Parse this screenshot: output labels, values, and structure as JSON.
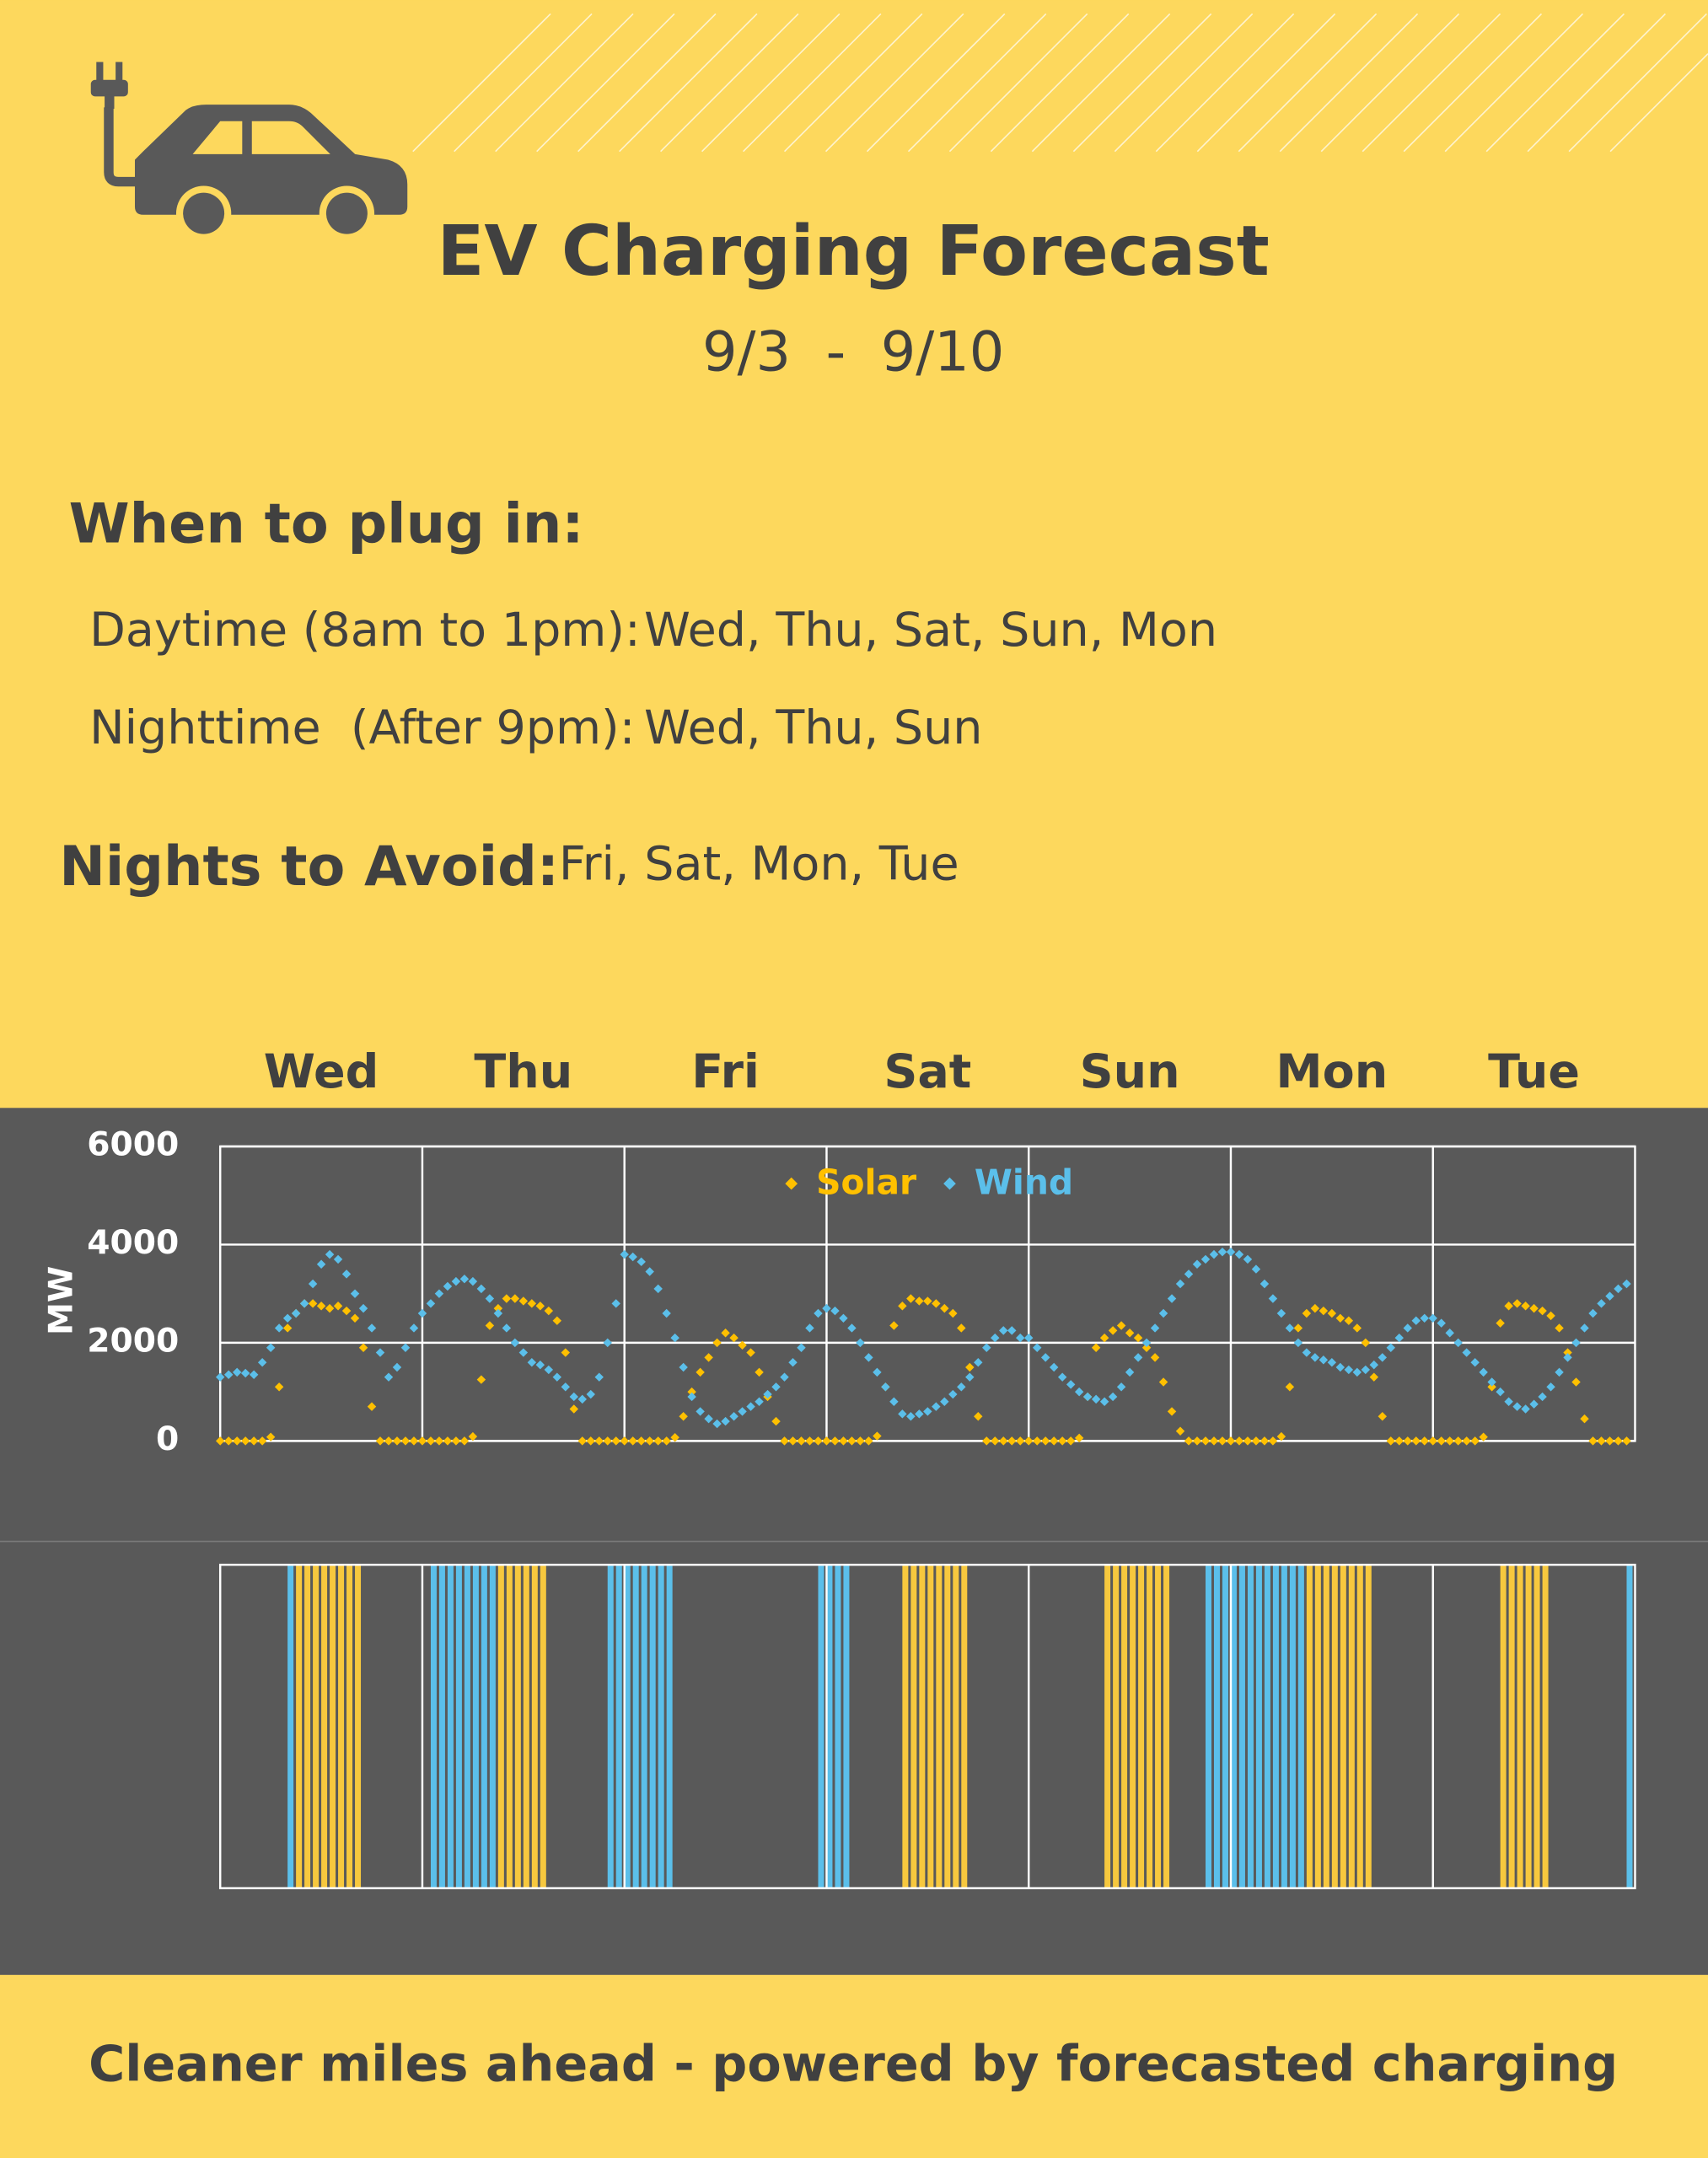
{
  "header": {
    "title": "EV Charging Forecast",
    "date_range": "9/3  -  9/10"
  },
  "plug_in": {
    "heading": "When to plug in:",
    "rows": [
      {
        "label": "Daytime (8am to 1pm):",
        "days": "Wed, Thu, Sat, Sun, Mon"
      },
      {
        "label": "Nighttime  (After 9pm):",
        "days": "Wed, Thu, Sun"
      }
    ]
  },
  "avoid": {
    "heading": "Nights to Avoid:",
    "days": "Fri, Sat, Mon, Tue"
  },
  "chart_data": [
    {
      "type": "scatter",
      "categories": [
        "Wed",
        "Thu",
        "Fri",
        "Sat",
        "Sun",
        "Mon",
        "Tue"
      ],
      "y_label": "MW",
      "ylim": [
        0,
        6000
      ],
      "yticks": [
        0,
        2000,
        4000,
        6000
      ],
      "legend": "top",
      "grid": true,
      "series": [
        {
          "name": "Solar",
          "color": "#FFC000",
          "values": [
            0,
            0,
            0,
            0,
            0,
            0,
            80,
            1100,
            2300,
            2600,
            2800,
            2800,
            2750,
            2700,
            2750,
            2650,
            2500,
            1900,
            700,
            0,
            0,
            0,
            0,
            0,
            0,
            0,
            0,
            0,
            0,
            0,
            90,
            1250,
            2350,
            2700,
            2900,
            2900,
            2850,
            2800,
            2750,
            2650,
            2450,
            1800,
            650,
            0,
            0,
            0,
            0,
            0,
            0,
            0,
            0,
            0,
            0,
            0,
            70,
            500,
            1000,
            1400,
            1700,
            2000,
            2200,
            2100,
            1950,
            1800,
            1400,
            900,
            400,
            0,
            0,
            0,
            0,
            0,
            0,
            0,
            0,
            0,
            0,
            0,
            100,
            1100,
            2350,
            2750,
            2900,
            2850,
            2850,
            2800,
            2700,
            2600,
            2300,
            1500,
            500,
            0,
            0,
            0,
            0,
            0,
            0,
            0,
            0,
            0,
            0,
            0,
            60,
            900,
            1900,
            2100,
            2250,
            2350,
            2200,
            2100,
            1900,
            1700,
            1200,
            600,
            200,
            0,
            0,
            0,
            0,
            0,
            0,
            0,
            0,
            0,
            0,
            0,
            90,
            1100,
            2300,
            2600,
            2700,
            2650,
            2600,
            2500,
            2450,
            2300,
            2000,
            1300,
            500,
            0,
            0,
            0,
            0,
            0,
            0,
            0,
            0,
            0,
            0,
            0,
            80,
            1100,
            2400,
            2750,
            2800,
            2750,
            2700,
            2650,
            2550,
            2300,
            1800,
            1200,
            450,
            0,
            0,
            0,
            0,
            0
          ]
        },
        {
          "name": "Wind",
          "color": "#5BBFEA",
          "values": [
            1300,
            1350,
            1400,
            1380,
            1350,
            1600,
            1900,
            2300,
            2500,
            2600,
            2800,
            3200,
            3600,
            3800,
            3700,
            3400,
            3000,
            2700,
            2300,
            1800,
            1300,
            1500,
            1900,
            2300,
            2600,
            2800,
            3000,
            3150,
            3250,
            3300,
            3250,
            3100,
            2900,
            2600,
            2300,
            2000,
            1800,
            1600,
            1550,
            1450,
            1300,
            1100,
            900,
            850,
            950,
            1300,
            2000,
            2800,
            3800,
            3750,
            3650,
            3450,
            3100,
            2600,
            2100,
            1500,
            900,
            600,
            450,
            350,
            400,
            500,
            600,
            700,
            800,
            950,
            1100,
            1300,
            1600,
            1900,
            2300,
            2600,
            2700,
            2650,
            2500,
            2300,
            2000,
            1700,
            1400,
            1100,
            800,
            550,
            500,
            550,
            600,
            700,
            800,
            950,
            1100,
            1300,
            1600,
            1900,
            2100,
            2250,
            2250,
            2100,
            2100,
            1900,
            1700,
            1500,
            1300,
            1150,
            1000,
            900,
            850,
            800,
            900,
            1100,
            1400,
            1700,
            2000,
            2300,
            2600,
            2900,
            3200,
            3400,
            3600,
            3700,
            3800,
            3850,
            3850,
            3800,
            3700,
            3500,
            3200,
            2900,
            2600,
            2300,
            2000,
            1800,
            1700,
            1650,
            1600,
            1500,
            1450,
            1400,
            1450,
            1550,
            1700,
            1900,
            2100,
            2300,
            2450,
            2500,
            2500,
            2400,
            2200,
            2000,
            1800,
            1600,
            1400,
            1200,
            1000,
            800,
            700,
            650,
            750,
            900,
            1100,
            1400,
            1700,
            2000,
            2300,
            2600,
            2800,
            2950,
            3100,
            3200
          ]
        }
      ]
    },
    {
      "type": "bar",
      "series": [
        {
          "color": "#5BBFEA",
          "hours": [
            8,
            25,
            26,
            27,
            28,
            29,
            30,
            31,
            32,
            46,
            47,
            48,
            49,
            50,
            51,
            52,
            53,
            71,
            72,
            73,
            74,
            117,
            118,
            119,
            120,
            121,
            122,
            123,
            124,
            125,
            126,
            127,
            128,
            167
          ]
        },
        {
          "color": "#F7C83E",
          "hours": [
            9,
            10,
            11,
            12,
            13,
            14,
            15,
            16,
            33,
            34,
            35,
            36,
            37,
            38,
            81,
            82,
            83,
            84,
            85,
            86,
            87,
            88,
            105,
            106,
            107,
            108,
            109,
            110,
            111,
            112,
            129,
            130,
            131,
            132,
            133,
            134,
            135,
            136,
            152,
            153,
            154,
            155,
            156,
            157
          ]
        }
      ]
    }
  ],
  "footer": "Cleaner miles ahead - powered by forecasted charging"
}
